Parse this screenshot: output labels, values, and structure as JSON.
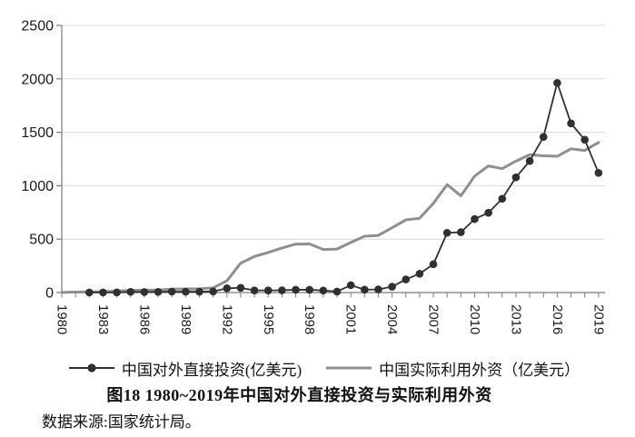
{
  "chart_data": {
    "type": "line",
    "title": "图18  1980~2019年中国对外直接投资与实际利用外资",
    "source_note": "数据来源:国家统计局。",
    "xlabel": "",
    "ylabel": "",
    "ylim": [
      0,
      2500
    ],
    "y_ticks": [
      0,
      500,
      1000,
      1500,
      2000,
      2500
    ],
    "grid": "horizontal-light",
    "legend_position": "bottom",
    "x": [
      1980,
      1981,
      1982,
      1983,
      1984,
      1985,
      1986,
      1987,
      1988,
      1989,
      1990,
      1991,
      1992,
      1993,
      1994,
      1995,
      1996,
      1997,
      1998,
      1999,
      2000,
      2001,
      2002,
      2003,
      2004,
      2005,
      2006,
      2007,
      2008,
      2009,
      2010,
      2011,
      2012,
      2013,
      2014,
      2015,
      2016,
      2017,
      2018,
      2019
    ],
    "x_labeled_ticks": [
      1980,
      1983,
      1986,
      1989,
      1992,
      1995,
      1998,
      2001,
      2004,
      2007,
      2010,
      2013,
      2016,
      2019
    ],
    "series": [
      {
        "name": "中国对外直接投资(亿美元)",
        "color": "#303030",
        "marker": "circle",
        "values": [
          null,
          null,
          0.4,
          0.9,
          1.3,
          6.3,
          4.5,
          6.4,
          8.5,
          7.8,
          8.3,
          10,
          40,
          44,
          20,
          20,
          21,
          26,
          26,
          19,
          9,
          69,
          27,
          29,
          55,
          123,
          176,
          265,
          559,
          565,
          688,
          747,
          878,
          1078,
          1231,
          1457,
          1962,
          1583,
          1430,
          1120
        ]
      },
      {
        "name": "中国实际利用外资（亿美元）",
        "color": "#8f8f8f",
        "marker": "none",
        "values": [
          1,
          4,
          6,
          9,
          14,
          20,
          22,
          23,
          32,
          34,
          35,
          44,
          110,
          275,
          338,
          375,
          417,
          453,
          455,
          403,
          407,
          469,
          527,
          535,
          606,
          680,
          695,
          835,
          1010,
          905,
          1090,
          1185,
          1160,
          1230,
          1290,
          1280,
          1275,
          1345,
          1330,
          1405
        ]
      }
    ]
  },
  "style": {
    "axis_color": "#7a7a7a",
    "grid_color": "#d9d9d9",
    "label_color": "#1a1a1a",
    "background": "#ffffff"
  }
}
